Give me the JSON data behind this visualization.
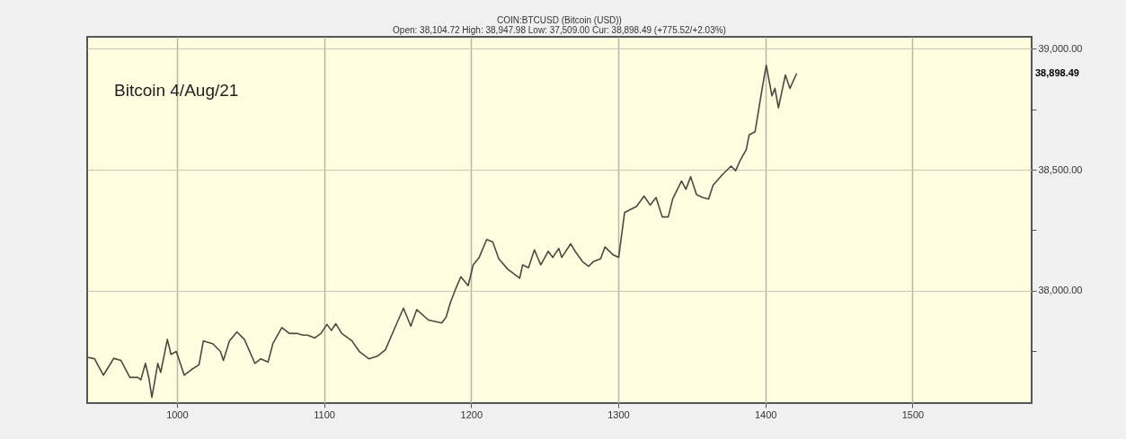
{
  "chart_data": {
    "type": "line",
    "title": "COIN:BTCUSD (Bitcoin (USD))",
    "subtitle": "Open: 38,104.72 High: 38,947.98 Low: 37,509.00 Cur: 38,898.49 (+775.52/+2.03%)",
    "annotations": [
      "Bitcoin 4/Aug/21",
      "38,898.49"
    ],
    "x": [
      939.2,
      944,
      950,
      955,
      957,
      962,
      968,
      973.5,
      975.5,
      978.6,
      981,
      983,
      987,
      989,
      993.5,
      996,
      999.6,
      1005,
      1010,
      1015,
      1018,
      1024.5,
      1029.6,
      1031.6,
      1035.7,
      1040.8,
      1045.9,
      1053,
      1057,
      1062,
      1065.2,
      1071.3,
      1076.4,
      1081.5,
      1085.6,
      1088.7,
      1093.8,
      1097.9,
      1102,
      1105,
      1108,
      1112,
      1119,
      1124,
      1130.5,
      1136.6,
      1141.7,
      1147.8,
      1154,
      1159,
      1163,
      1171,
      1180,
      1183,
      1186,
      1190,
      1193,
      1198,
      1201.4,
      1205.5,
      1210.6,
      1214.7,
      1218.8,
      1224.9,
      1233,
      1235,
      1239,
      1243,
      1247.3,
      1252.4,
      1255.5,
      1259.6,
      1261.6,
      1267.7,
      1270.7,
      1275.8,
      1279.9,
      1283,
      1288,
      1291,
      1296.2,
      1300.3,
      1304.3,
      1308.4,
      1312.4,
      1317.5,
      1321.7,
      1325.7,
      1329.9,
      1334,
      1337,
      1343,
      1346,
      1349.2,
      1353.2,
      1357.4,
      1361.4,
      1364.4,
      1370.5,
      1376.7,
      1379.8,
      1382.9,
      1387,
      1389,
      1393,
      1398,
      1400.6,
      1404.5,
      1406.5,
      1408.9,
      1413.6,
      1416.7,
      1421.3
    ],
    "series": [
      {
        "color": "#4a4a40",
        "values": [
          37725,
          37719,
          37651,
          37700,
          37721,
          37712,
          37642,
          37642,
          37632,
          37700,
          37638,
          37560,
          37700,
          37663,
          37799,
          37737,
          37749,
          37651,
          37675,
          37694,
          37793,
          37781,
          37749,
          37712,
          37793,
          37830,
          37799,
          37700,
          37719,
          37706,
          37781,
          37848,
          37824,
          37824,
          37817,
          37817,
          37805,
          37824,
          37861,
          37836,
          37864,
          37824,
          37793,
          37749,
          37719,
          37731,
          37756,
          37842,
          37928,
          37854,
          37922,
          37879,
          37867,
          37891,
          37953,
          38015,
          38058,
          38021,
          38107,
          38138,
          38212,
          38202,
          38132,
          38089,
          38052,
          38107,
          38095,
          38169,
          38107,
          38163,
          38138,
          38175,
          38138,
          38194,
          38163,
          38120,
          38101,
          38120,
          38132,
          38181,
          38150,
          38138,
          38323,
          38336,
          38348,
          38391,
          38354,
          38385,
          38305,
          38305,
          38379,
          38453,
          38419,
          38471,
          38397,
          38385,
          38379,
          38435,
          38478,
          38515,
          38496,
          38539,
          38583,
          38644,
          38657,
          38842,
          38931,
          38805,
          38836,
          38756,
          38891,
          38836,
          38898
        ]
      }
    ],
    "xlim": [
      939,
      1581
    ],
    "xticks": [
      1000,
      1100,
      1200,
      1300,
      1400,
      1500
    ],
    "ylim": [
      37536,
      39049
    ],
    "yticks": [
      {
        "value": 37750,
        "label": null
      },
      {
        "value": 38000,
        "label": "38,000.00"
      },
      {
        "value": 38250,
        "label": null
      },
      {
        "value": 38500,
        "label": "38,500.00"
      },
      {
        "value": 38750,
        "label": null
      },
      {
        "value": 39000,
        "label": "39,000.00"
      }
    ],
    "grid": true,
    "line_style": "solid",
    "marker": "none"
  }
}
